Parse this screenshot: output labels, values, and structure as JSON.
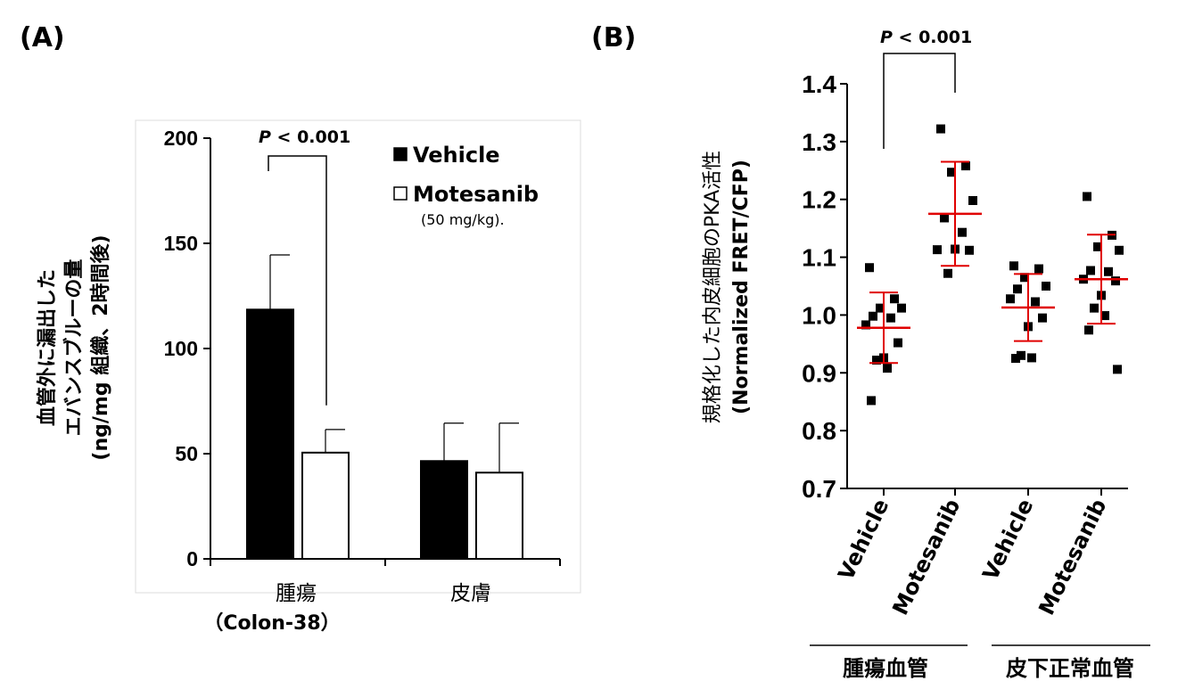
{
  "panel_labels": [
    "(A)",
    "(B)"
  ],
  "chart_data": [
    {
      "type": "bar",
      "panel": "(A)",
      "ylabel_lines": [
        "血管外に漏出した",
        "エバンスブルーの量",
        "(ng/mg 組織、2時間後)"
      ],
      "ylim": [
        0,
        200
      ],
      "yticks": [
        0,
        50,
        100,
        150,
        200
      ],
      "ytick_labels": [
        "0",
        "50",
        "100",
        "150",
        "200"
      ],
      "categories": [
        {
          "label_lines": [
            "腫瘍",
            "（Colon-38）"
          ]
        },
        {
          "label_lines": [
            "皮膚"
          ]
        }
      ],
      "series": [
        {
          "name": "Vehicle",
          "fill": "#000000",
          "values": [
            118.5,
            46.5
          ],
          "errors": [
            26,
            18
          ]
        },
        {
          "name": "Motesanib",
          "fill": "#ffffff",
          "values": [
            50.5,
            41
          ],
          "errors": [
            11,
            23.5
          ]
        }
      ],
      "legend": {
        "position": "top-right",
        "note": "(50 mg/kg)."
      },
      "annotation": {
        "p_italic": "P",
        "p_rest": " < 0.001"
      },
      "grid": false
    },
    {
      "type": "scatter",
      "panel": "(B)",
      "ylabel_lines": [
        "規格化した内皮細胞のPKA活性",
        "(Normalized FRET/CFP)"
      ],
      "ylim": [
        0.7,
        1.4
      ],
      "yticks": [
        0.7,
        0.8,
        0.9,
        1.0,
        1.1,
        1.2,
        1.3,
        1.4
      ],
      "ytick_labels": [
        "0.7",
        "0.8",
        "0.9",
        "1.0",
        "1.1",
        "1.2",
        "1.3",
        "1.4"
      ],
      "categories": [
        "Vehicle",
        "Motesanib",
        "Vehicle",
        "Motesanib"
      ],
      "groups": [
        {
          "label": "腫瘍血管",
          "categories": [
            0,
            1
          ]
        },
        {
          "label": "皮下正常血管",
          "categories": [
            2,
            3
          ]
        }
      ],
      "series": [
        {
          "category": 0,
          "mean": 0.978,
          "sd": 0.061,
          "points": [
            1.082,
            1.028,
            1.012,
            1.012,
            0.998,
            0.995,
            0.983,
            0.952,
            0.926,
            0.922,
            0.908,
            0.852
          ]
        },
        {
          "category": 1,
          "mean": 1.175,
          "sd": 0.09,
          "points": [
            1.322,
            1.258,
            1.247,
            1.198,
            1.168,
            1.143,
            1.113,
            1.112,
            1.114,
            1.072
          ]
        },
        {
          "category": 2,
          "mean": 1.013,
          "sd": 0.058,
          "points": [
            1.085,
            1.08,
            1.065,
            1.05,
            1.045,
            1.023,
            1.028,
            0.995,
            0.98,
            0.93,
            0.926,
            0.925
          ]
        },
        {
          "category": 3,
          "mean": 1.062,
          "sd": 0.077,
          "points": [
            1.205,
            1.138,
            1.118,
            1.112,
            1.077,
            1.075,
            1.062,
            1.059,
            1.034,
            1.012,
            0.999,
            0.974,
            0.906
          ]
        }
      ],
      "point_color": "#000000",
      "errorbar_color": "#e00000",
      "annotation": {
        "p_italic": "P",
        "p_rest": " < 0.001"
      },
      "grid": false
    }
  ]
}
